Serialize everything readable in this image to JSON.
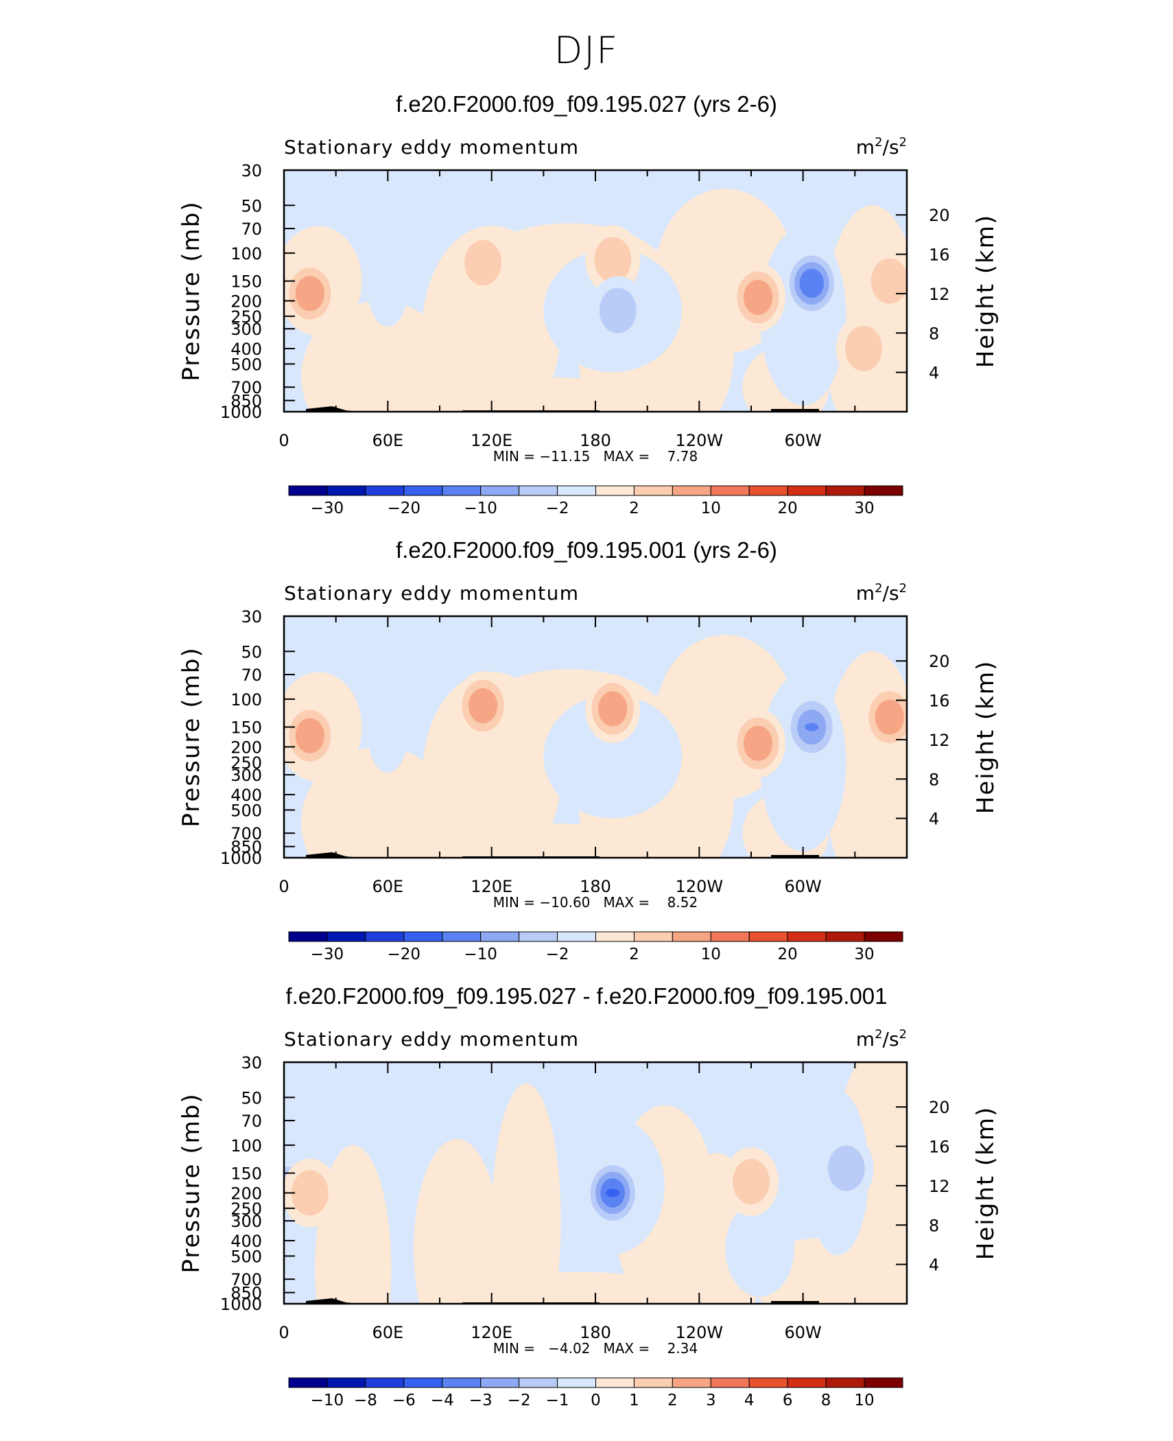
{
  "figure": {
    "title": "DJF"
  },
  "colors": {
    "cbar": [
      "#00008f",
      "#0018b0",
      "#1f3fdc",
      "#3660f0",
      "#5a82f2",
      "#8ea9f4",
      "#b9ccf7",
      "#d8e7fb",
      "#fde8d5",
      "#fbcdb1",
      "#f6a685",
      "#f0775a",
      "#e8502e",
      "#d42f16",
      "#ad1a0a",
      "#7c0000"
    ]
  },
  "panels": [
    {
      "title": "f.e20.F2000.f09_f09.195.027 (yrs 2-6)",
      "left_label": "Stationary eddy momentum",
      "unit_base": "m",
      "unit_mid": "/s",
      "unit_sup": "2",
      "y_label": "Pressure (mb)",
      "y2_label": "Height (km)",
      "p_ticks": [
        "30",
        "50",
        "70",
        "100",
        "150",
        "200",
        "250",
        "300",
        "400",
        "500",
        "700",
        "850",
        "1000"
      ],
      "z_ticks": [
        "20",
        "16",
        "12",
        "8",
        "4"
      ],
      "x_ticks": [
        "0",
        "60E",
        "120E",
        "180",
        "120W",
        "60W"
      ],
      "stats": "MIN = −11.15   MAX =    7.78",
      "cbar_labels": [
        "−30",
        "−20",
        "−10",
        "−2",
        "2",
        "10",
        "20",
        "30"
      ]
    },
    {
      "title": "f.e20.F2000.f09_f09.195.001 (yrs 2-6)",
      "left_label": "Stationary eddy momentum",
      "unit_base": "m",
      "unit_mid": "/s",
      "unit_sup": "2",
      "y_label": "Pressure (mb)",
      "y2_label": "Height (km)",
      "p_ticks": [
        "30",
        "50",
        "70",
        "100",
        "150",
        "200",
        "250",
        "300",
        "400",
        "500",
        "700",
        "850",
        "1000"
      ],
      "z_ticks": [
        "20",
        "16",
        "12",
        "8",
        "4"
      ],
      "x_ticks": [
        "0",
        "60E",
        "120E",
        "180",
        "120W",
        "60W"
      ],
      "stats": "MIN = −10.60   MAX =    8.52",
      "cbar_labels": [
        "−30",
        "−20",
        "−10",
        "−2",
        "2",
        "10",
        "20",
        "30"
      ]
    },
    {
      "title": "f.e20.F2000.f09_f09.195.027 - f.e20.F2000.f09_f09.195.001",
      "left_label": "Stationary eddy momentum",
      "unit_base": "m",
      "unit_mid": "/s",
      "unit_sup": "2",
      "y_label": "Pressure (mb)",
      "y2_label": "Height (km)",
      "p_ticks": [
        "30",
        "50",
        "70",
        "100",
        "150",
        "200",
        "250",
        "300",
        "400",
        "500",
        "700",
        "850",
        "1000"
      ],
      "z_ticks": [
        "20",
        "16",
        "12",
        "8",
        "4"
      ],
      "x_ticks": [
        "0",
        "60E",
        "120E",
        "180",
        "120W",
        "60W"
      ],
      "stats": "MIN =   −4.02   MAX =    2.34",
      "cbar_labels": [
        "−10",
        "−8",
        "−6",
        "−4",
        "−3",
        "−2",
        "−1",
        "0",
        "1",
        "2",
        "3",
        "4",
        "6",
        "8",
        "10"
      ]
    }
  ],
  "chart_data": [
    {
      "type": "heatmap",
      "title": "f.e20.F2000.f09_f09.195.027 (yrs 2-6)",
      "variable": "Stationary eddy momentum",
      "units": "m2/s2",
      "xlabel": "",
      "ylabel": "Pressure (mb)",
      "y2label": "Height (km)",
      "x_range": [
        0,
        360
      ],
      "x_ticks": [
        0,
        60,
        120,
        180,
        240,
        300
      ],
      "p_range": [
        1000,
        30
      ],
      "y_scale": "log-pressure",
      "min": -11.15,
      "max": 7.78,
      "levels": [
        -30,
        -25,
        -20,
        -15,
        -10,
        -5,
        -2,
        0,
        2,
        5,
        10,
        15,
        20,
        25,
        30
      ],
      "features": [
        {
          "lon": 15,
          "p": 180,
          "value": 7
        },
        {
          "lon": 115,
          "p": 115,
          "value": 5
        },
        {
          "lon": 190,
          "p": 110,
          "value": 5
        },
        {
          "lon": 193,
          "p": 230,
          "value": -4
        },
        {
          "lon": 274,
          "p": 190,
          "value": 7.5
        },
        {
          "lon": 305,
          "p": 155,
          "value": -11
        },
        {
          "lon": 350,
          "p": 150,
          "value": 5
        },
        {
          "lon": 335,
          "p": 400,
          "value": 3
        }
      ]
    },
    {
      "type": "heatmap",
      "title": "f.e20.F2000.f09_f09.195.001 (yrs 2-6)",
      "variable": "Stationary eddy momentum",
      "units": "m2/s2",
      "xlabel": "",
      "ylabel": "Pressure (mb)",
      "y2label": "Height (km)",
      "x_range": [
        0,
        360
      ],
      "x_ticks": [
        0,
        60,
        120,
        180,
        240,
        300
      ],
      "p_range": [
        1000,
        30
      ],
      "y_scale": "log-pressure",
      "min": -10.6,
      "max": 8.52,
      "levels": [
        -30,
        -25,
        -20,
        -15,
        -10,
        -5,
        -2,
        0,
        2,
        5,
        10,
        15,
        20,
        25,
        30
      ],
      "features": [
        {
          "lon": 15,
          "p": 170,
          "value": 7
        },
        {
          "lon": 115,
          "p": 110,
          "value": 5.5
        },
        {
          "lon": 190,
          "p": 115,
          "value": 6
        },
        {
          "lon": 274,
          "p": 190,
          "value": 8
        },
        {
          "lon": 305,
          "p": 150,
          "value": -10
        },
        {
          "lon": 350,
          "p": 130,
          "value": 6
        }
      ]
    },
    {
      "type": "heatmap",
      "title": "f.e20.F2000.f09_f09.195.027 - f.e20.F2000.f09_f09.195.001",
      "variable": "Stationary eddy momentum",
      "units": "m2/s2",
      "xlabel": "",
      "ylabel": "Pressure (mb)",
      "y2label": "Height (km)",
      "x_range": [
        0,
        360
      ],
      "x_ticks": [
        0,
        60,
        120,
        180,
        240,
        300
      ],
      "p_range": [
        1000,
        30
      ],
      "y_scale": "log-pressure",
      "min": -4.02,
      "max": 2.34,
      "levels": [
        -10,
        -8,
        -6,
        -4,
        -3,
        -2,
        -1,
        0,
        1,
        2,
        3,
        4,
        6,
        8,
        10
      ],
      "features": [
        {
          "lon": 190,
          "p": 200,
          "value": -4
        },
        {
          "lon": 2,
          "p": 190,
          "value": -2
        },
        {
          "lon": 325,
          "p": 140,
          "value": -1.5
        },
        {
          "lon": 15,
          "p": 200,
          "value": 1.5
        },
        {
          "lon": 270,
          "p": 170,
          "value": 1.5
        }
      ]
    }
  ]
}
